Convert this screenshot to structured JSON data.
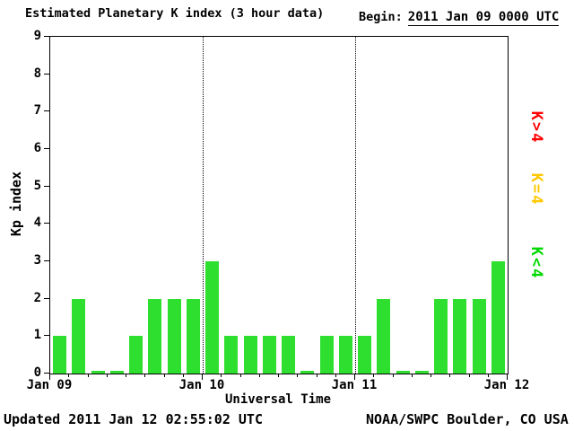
{
  "title": "Estimated Planetary K index (3 hour data)",
  "begin": {
    "label": "Begin:",
    "value": "2011 Jan 09 0000 UTC"
  },
  "footer": {
    "updated": "Updated 2011 Jan 12 02:55:02 UTC",
    "source": "NOAA/SWPC Boulder, CO USA"
  },
  "chart_data": {
    "type": "bar",
    "title": "Estimated Planetary K index (3 hour data)",
    "xlabel": "Universal Time",
    "ylabel": "Kp index",
    "ylim": [
      0,
      9
    ],
    "y_ticks": [
      0,
      1,
      2,
      3,
      4,
      5,
      6,
      7,
      8,
      9
    ],
    "x_ticks": [
      "Jan 09",
      "Jan 10",
      "Jan 11",
      "Jan 12"
    ],
    "interval_hours": 3,
    "values": [
      1,
      2,
      0,
      0,
      1,
      2,
      2,
      2,
      3,
      1,
      1,
      1,
      1,
      0,
      1,
      1,
      1,
      2,
      0,
      0,
      2,
      2,
      2,
      3
    ],
    "colors": {
      "bar": "#2fdf2f",
      "axis": "#000000",
      "background": "#ffffff"
    },
    "legend": [
      {
        "label": "K>4",
        "color": "#ff0000"
      },
      {
        "label": "K=4",
        "color": "#ffc800"
      },
      {
        "label": "K<4",
        "color": "#00d900"
      }
    ],
    "grid": "dotted vertical lines at day boundaries",
    "legend_position": "right"
  }
}
